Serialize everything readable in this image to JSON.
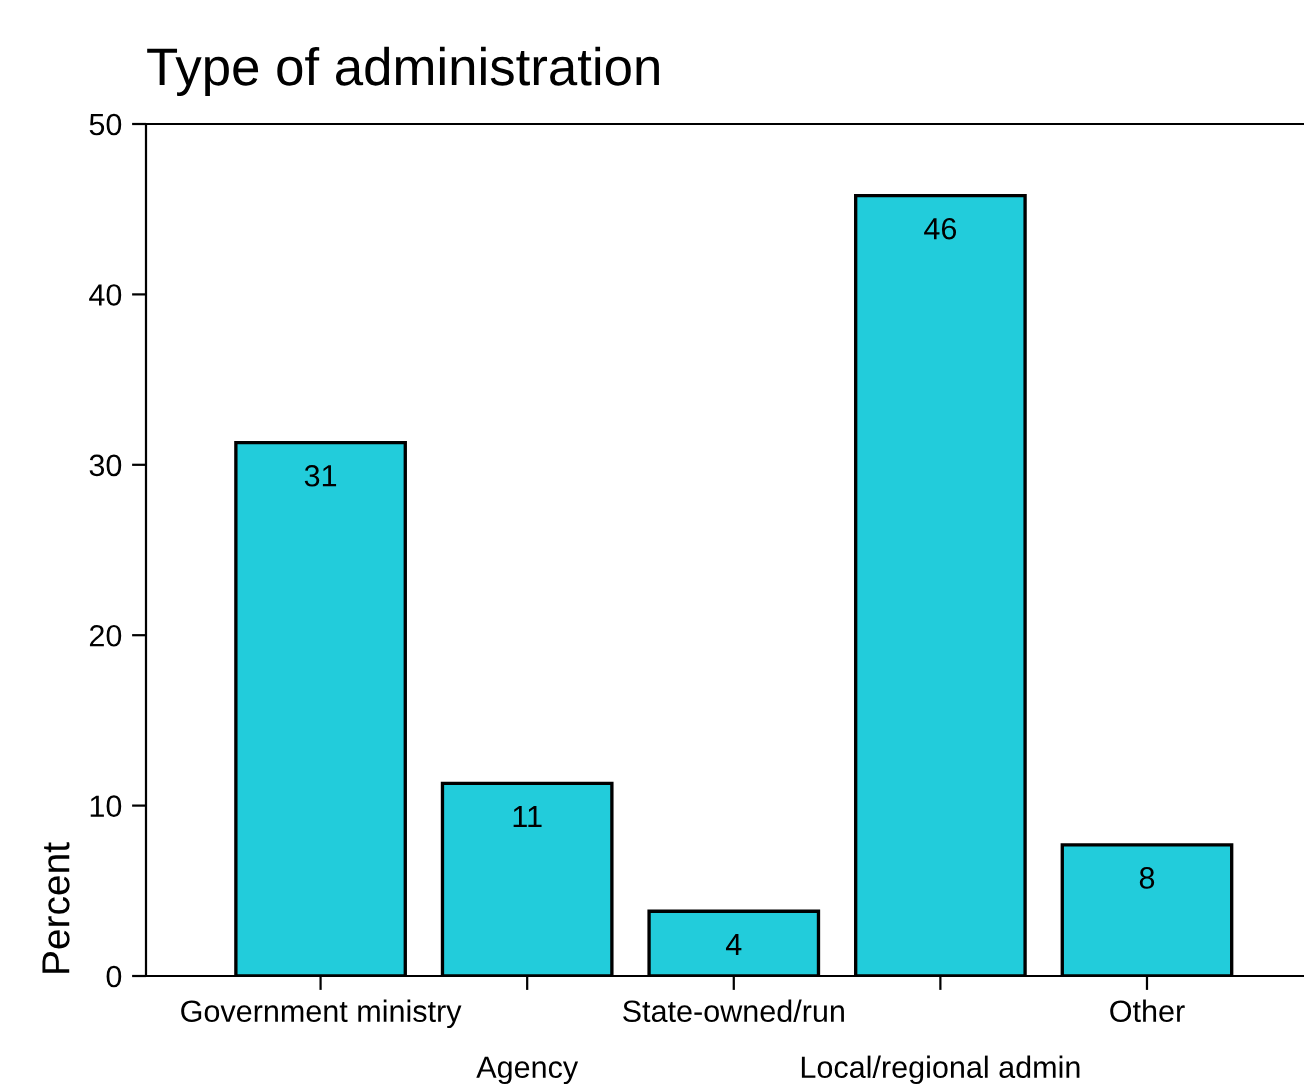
{
  "chart_data": {
    "type": "bar",
    "title": "Type of administration",
    "ylabel": "Percent",
    "categories": [
      "Government ministry",
      "Agency",
      "State-owned/run",
      "Local/regional admin",
      "Other"
    ],
    "values": [
      31.3,
      11.3,
      3.8,
      45.8,
      7.7
    ],
    "value_labels": [
      "31",
      "11",
      "4",
      "46",
      "8"
    ],
    "color": "#22ccdb",
    "ylim": [
      0,
      50
    ],
    "yticks": [
      0,
      10,
      20,
      30,
      40,
      50
    ],
    "grid": false,
    "legend": false
  }
}
